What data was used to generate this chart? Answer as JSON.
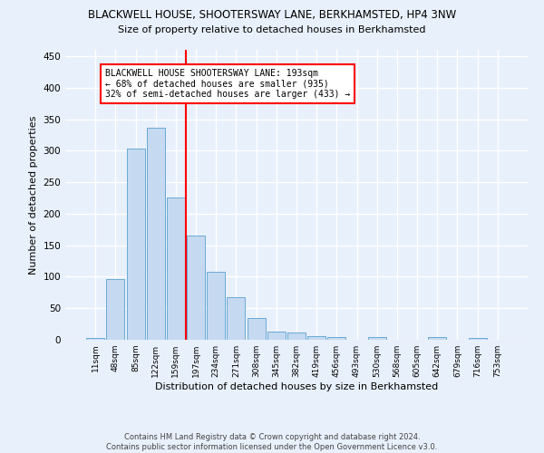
{
  "title": "BLACKWELL HOUSE, SHOOTERSWAY LANE, BERKHAMSTED, HP4 3NW",
  "subtitle": "Size of property relative to detached houses in Berkhamsted",
  "xlabel": "Distribution of detached houses by size in Berkhamsted",
  "ylabel": "Number of detached properties",
  "categories": [
    "11sqm",
    "48sqm",
    "85sqm",
    "122sqm",
    "159sqm",
    "197sqm",
    "234sqm",
    "271sqm",
    "308sqm",
    "345sqm",
    "382sqm",
    "419sqm",
    "456sqm",
    "493sqm",
    "530sqm",
    "568sqm",
    "605sqm",
    "642sqm",
    "679sqm",
    "716sqm",
    "753sqm"
  ],
  "values": [
    3,
    97,
    303,
    337,
    225,
    165,
    108,
    67,
    35,
    13,
    11,
    6,
    4,
    0,
    4,
    0,
    0,
    4,
    0,
    3,
    0
  ],
  "bar_color": "#c5d9f0",
  "bar_edge_color": "#6aaad4",
  "background_color": "#e8f0fb",
  "grid_color": "#ffffff",
  "vline_x_index": 5,
  "vline_color": "red",
  "annotation_line1": "BLACKWELL HOUSE SHOOTERSWAY LANE: 193sqm",
  "annotation_line2": "← 68% of detached houses are smaller (935)",
  "annotation_line3": "32% of semi-detached houses are larger (433) →",
  "annotation_box_color": "#ffffff",
  "annotation_box_edge": "red",
  "footer_line1": "Contains HM Land Registry data © Crown copyright and database right 2024.",
  "footer_line2": "Contains public sector information licensed under the Open Government Licence v3.0.",
  "ylim": [
    0,
    460
  ],
  "yticks": [
    0,
    50,
    100,
    150,
    200,
    250,
    300,
    350,
    400,
    450
  ]
}
